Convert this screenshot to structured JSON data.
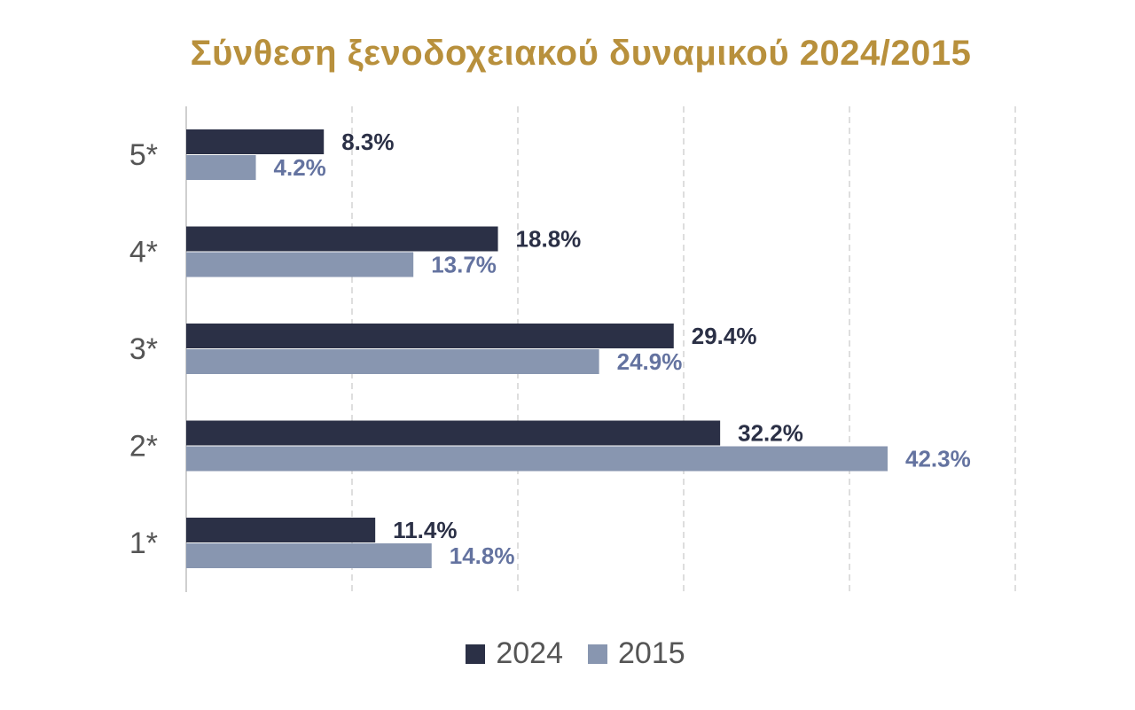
{
  "chart_data": {
    "type": "bar",
    "orientation": "horizontal",
    "title": "Σύνθεση ξενοδοχειακού δυναμικού 2024/2015",
    "categories": [
      "5*",
      "4*",
      "3*",
      "2*",
      "1*"
    ],
    "series": [
      {
        "name": "2024",
        "color": "#2b3046",
        "values": [
          8.3,
          18.8,
          29.4,
          32.2,
          11.4
        ],
        "labels": [
          "8.3%",
          "18.8%",
          "29.4%",
          "32.2%",
          "11.4%"
        ],
        "label_color": "#2b3046"
      },
      {
        "name": "2015",
        "color": "#8896b0",
        "values": [
          4.2,
          13.7,
          24.9,
          42.3,
          14.8
        ],
        "labels": [
          "4.2%",
          "13.7%",
          "24.9%",
          "42.3%",
          "14.8%"
        ],
        "label_color": "#6473a0"
      }
    ],
    "xlim": [
      0,
      50
    ],
    "x_grid_step": 10,
    "grid": true,
    "grid_style": "dashed",
    "tick_labels_x_shown": false,
    "legend": "bottom-center"
  },
  "colors": {
    "title": "#b8903c",
    "category_label": "#555555",
    "grid": "#d4d4d4",
    "axis": "#cfcfcf"
  }
}
